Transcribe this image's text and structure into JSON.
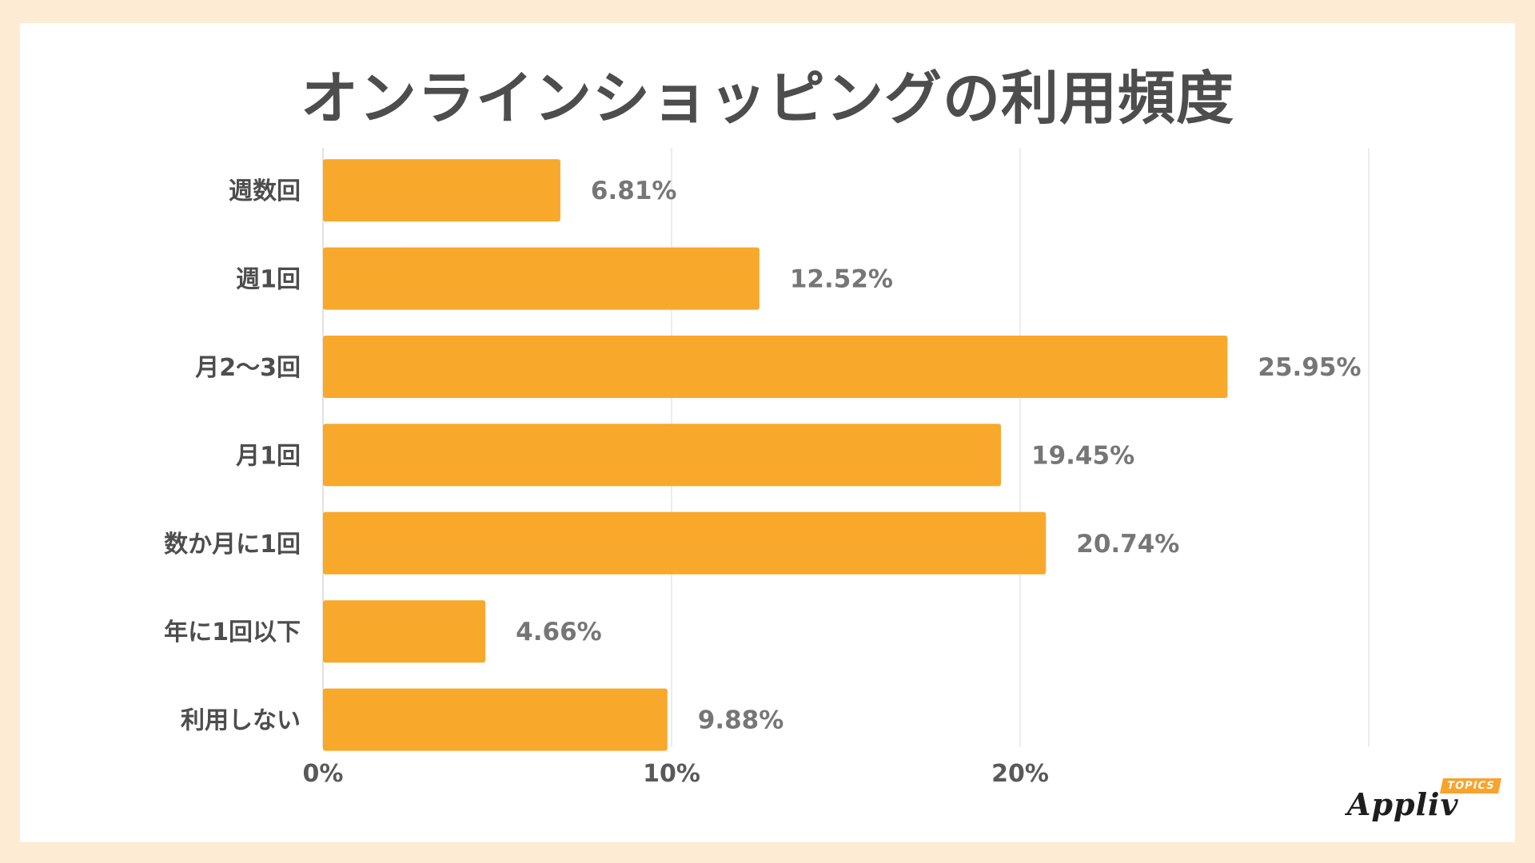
{
  "title": "オンラインショッピングの利用頻度",
  "colors": {
    "bar": "#f8a82b",
    "grid": "#d9d9d9",
    "category_text": "#4d4d4d",
    "value_text": "#767676",
    "tick_text": "#595959"
  },
  "chart_data": {
    "type": "bar",
    "orientation": "horizontal",
    "title": "オンラインショッピングの利用頻度",
    "categories": [
      "週数回",
      "週1回",
      "月2〜3回",
      "月1回",
      "数か月に1回",
      "年に1回以下",
      "利用しない"
    ],
    "values": [
      6.81,
      12.52,
      25.95,
      19.45,
      20.74,
      4.66,
      9.88
    ],
    "value_labels": [
      "6.81%",
      "12.52%",
      "25.95%",
      "19.45%",
      "20.74%",
      "4.66%",
      "9.88%"
    ],
    "xlim": [
      0,
      30
    ],
    "x_ticks": [
      0,
      10,
      20
    ],
    "x_tick_labels": [
      "0%",
      "10%",
      "20%"
    ],
    "grid": true,
    "legend": "none"
  },
  "logo": {
    "word": "Appliv",
    "badge": "TOPICS"
  }
}
